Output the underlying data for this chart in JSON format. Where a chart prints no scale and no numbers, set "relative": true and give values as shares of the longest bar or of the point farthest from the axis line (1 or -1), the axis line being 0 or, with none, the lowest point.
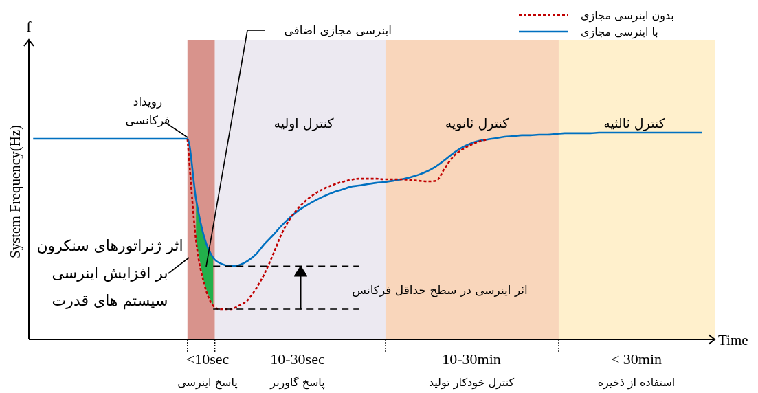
{
  "chart_data": {
    "type": "line",
    "relative": true,
    "xlabel": "Time",
    "ylabel": "System Frequency(Hz)",
    "categories": [
      null,
      null,
      null,
      null,
      null,
      null,
      null,
      null,
      null,
      null,
      null,
      null,
      null,
      null,
      null,
      null,
      null,
      null,
      null,
      null,
      null,
      null,
      null,
      null,
      null,
      null,
      null,
      null,
      null,
      null,
      null,
      null,
      null,
      null,
      null,
      null,
      null,
      null,
      null,
      null,
      null,
      null,
      null,
      null,
      null,
      null,
      null,
      null,
      null,
      null,
      null,
      null,
      null,
      null,
      null,
      null,
      null,
      null,
      null,
      null,
      null,
      null,
      null,
      null,
      null,
      null,
      null,
      null,
      null,
      null,
      null,
      null,
      null,
      null,
      null,
      null,
      null,
      null,
      null,
      null
    ],
    "series": [
      {
        "name": "بدون اینرسی مجازی",
        "color": "#c00000",
        "line_style": "dotted",
        "values": [
          null,
          null,
          null,
          null,
          null,
          null,
          null,
          null,
          null,
          null,
          null,
          null,
          null,
          null,
          null,
          null,
          null,
          null,
          0.97,
          0.478,
          0.262,
          0.163,
          0.146,
          0.146,
          0.163,
          0.189,
          0.246,
          0.319,
          0.412,
          0.512,
          0.585,
          0.638,
          0.678,
          0.708,
          0.731,
          0.748,
          0.761,
          0.771,
          0.777,
          0.777,
          0.777,
          0.774,
          0.774,
          0.774,
          0.771,
          0.767,
          0.764,
          0.767,
          0.827,
          0.884,
          0.917,
          0.94,
          0.957,
          0.967,
          null,
          null,
          null,
          null,
          null,
          null,
          null,
          null,
          null,
          null,
          null,
          null,
          null,
          null,
          null,
          null,
          null,
          null,
          null,
          null,
          null,
          null,
          null,
          null,
          null,
          null
        ]
      },
      {
        "name": "با اینرسی مجازی",
        "color": "#0070c0",
        "line_style": "solid",
        "values": [
          0.97,
          0.97,
          0.97,
          0.97,
          0.97,
          0.97,
          0.97,
          0.97,
          0.97,
          0.97,
          0.97,
          0.97,
          0.97,
          0.97,
          0.97,
          0.97,
          0.97,
          0.97,
          0.97,
          0.678,
          0.488,
          0.395,
          0.365,
          0.355,
          0.359,
          0.379,
          0.412,
          0.462,
          0.505,
          0.551,
          0.591,
          0.625,
          0.651,
          0.674,
          0.694,
          0.711,
          0.724,
          0.738,
          0.744,
          0.751,
          0.757,
          0.761,
          0.767,
          0.774,
          0.784,
          0.797,
          0.814,
          0.837,
          0.867,
          0.9,
          0.927,
          0.947,
          0.96,
          0.967,
          0.973,
          0.98,
          0.983,
          0.987,
          0.987,
          0.99,
          0.99,
          0.993,
          0.997,
          0.997,
          0.997,
          0.997,
          1.0,
          1.0,
          1.0,
          1.0,
          1.0,
          1.0,
          1.0,
          1.0,
          1.0,
          1.0,
          1.0,
          1.0,
          1.0,
          null
        ]
      },
      {
        "type": "line",
        "color": "#000000",
        "line_style": "dashed",
        "values": [
          null,
          null,
          null,
          null,
          null,
          null,
          null,
          null,
          null,
          null,
          null,
          null,
          null,
          null,
          null,
          null,
          null,
          null,
          null,
          null,
          null,
          0.355,
          0.355,
          0.355,
          0.355,
          0.355,
          0.355,
          0.355,
          0.355,
          0.355,
          0.355,
          0.355,
          0.355,
          0.355,
          0.355,
          0.355,
          0.355,
          0.355,
          0.355,
          null,
          null,
          null,
          null,
          null,
          null,
          null,
          null,
          null,
          null,
          null,
          null,
          null,
          null,
          null,
          null,
          null,
          null,
          null,
          null,
          null,
          null,
          null,
          null,
          null,
          null,
          null,
          null,
          null,
          null,
          null,
          null,
          null,
          null,
          null,
          null,
          null,
          null,
          null,
          null,
          null
        ]
      },
      {
        "type": "line",
        "color": "#000000",
        "line_style": "dashed",
        "values": [
          null,
          null,
          null,
          null,
          null,
          null,
          null,
          null,
          null,
          null,
          null,
          null,
          null,
          null,
          null,
          null,
          null,
          null,
          null,
          null,
          null,
          0.146,
          0.146,
          0.146,
          0.146,
          0.146,
          0.146,
          0.146,
          0.146,
          0.146,
          0.146,
          0.146,
          0.146,
          0.146,
          0.146,
          0.146,
          0.146,
          0.146,
          0.146,
          null,
          null,
          null,
          null,
          null,
          null,
          null,
          null,
          null,
          null,
          null,
          null,
          null,
          null,
          null,
          null,
          null,
          null,
          null,
          null,
          null,
          null,
          null,
          null,
          null,
          null,
          null,
          null,
          null,
          null,
          null,
          null,
          null,
          null,
          null,
          null,
          null,
          null,
          null,
          null,
          null
        ]
      }
    ],
    "annotations": [
      "رویداد\nفرکانسی",
      "اینرسی مجازی اضافی",
      "اثر ژنراتورهای سنکرون\nبر افزایش اینرسی\nسیستم های قدرت",
      "اثر اینرسی در سطح حداقل فرکانس",
      "f",
      "<10sec\nپاسخ اینرسی",
      "10-30sec\nپاسخ گاورنر",
      "10-30min\nکنترل خودکار تولید",
      "< 30min\nاستفاده از ذخیره",
      "کنترل اولیه",
      "کنترل ثانویه",
      "کنترل ثالثیه"
    ],
    "legend": "top right"
  }
}
